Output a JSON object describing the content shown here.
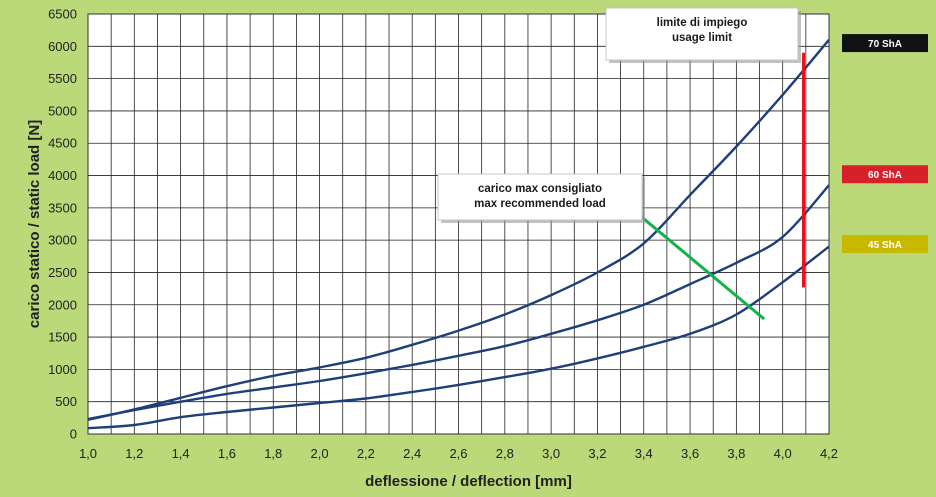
{
  "chart_data": {
    "type": "line",
    "xlabel": "deflessione / deflection [mm]",
    "ylabel": "carico statico / static load [N]",
    "xlim": [
      1.0,
      4.2
    ],
    "ylim": [
      0,
      6500
    ],
    "x_ticks": [
      "1,0",
      "1,2",
      "1,4",
      "1,6",
      "1,8",
      "2,0",
      "2,2",
      "2,4",
      "2,6",
      "2,8",
      "3,0",
      "3,2",
      "3,4",
      "3,6",
      "3,8",
      "4,0",
      "4,2"
    ],
    "y_ticks": [
      "0",
      "500",
      "1000",
      "1500",
      "2000",
      "2500",
      "3000",
      "3500",
      "4000",
      "4500",
      "5000",
      "5500",
      "6000",
      "6500"
    ],
    "grid": true,
    "series": [
      {
        "name": "70 ShA",
        "color": "#1f3f7a",
        "x": [
          1.0,
          1.2,
          1.4,
          1.6,
          1.8,
          2.0,
          2.2,
          2.4,
          2.6,
          2.8,
          3.0,
          3.2,
          3.4,
          3.6,
          3.8,
          4.0,
          4.2
        ],
        "y": [
          220,
          380,
          560,
          740,
          900,
          1030,
          1180,
          1380,
          1600,
          1850,
          2150,
          2500,
          2950,
          3700,
          4450,
          5250,
          6100
        ]
      },
      {
        "name": "60 ShA",
        "color": "#1f3f7a",
        "x": [
          1.0,
          1.2,
          1.4,
          1.6,
          1.8,
          2.0,
          2.2,
          2.4,
          2.6,
          2.8,
          3.0,
          3.2,
          3.4,
          3.6,
          3.8,
          4.0,
          4.2
        ],
        "y": [
          230,
          370,
          500,
          620,
          720,
          820,
          940,
          1070,
          1210,
          1360,
          1550,
          1760,
          2000,
          2320,
          2650,
          3050,
          3850
        ]
      },
      {
        "name": "45 ShA",
        "color": "#1f3f7a",
        "x": [
          1.0,
          1.2,
          1.4,
          1.6,
          1.8,
          2.0,
          2.2,
          2.4,
          2.6,
          2.8,
          3.0,
          3.2,
          3.4,
          3.6,
          3.8,
          4.0,
          4.2
        ],
        "y": [
          90,
          140,
          260,
          340,
          410,
          480,
          550,
          650,
          760,
          880,
          1010,
          1170,
          1350,
          1550,
          1850,
          2350,
          2900
        ]
      }
    ],
    "annotations": [
      {
        "name": "usage-limit",
        "lines": [
          "limite di impiego",
          "usage limit"
        ],
        "color": "#e8101c",
        "line": {
          "x": [
            4.09,
            4.09
          ],
          "y": [
            5900,
            2270
          ]
        }
      },
      {
        "name": "max-recommended-load",
        "lines": [
          "carico max consigliato",
          "max recommended load"
        ],
        "color": "#13b34a",
        "line": {
          "x": [
            3.36,
            3.92
          ],
          "y": [
            3450,
            1780
          ]
        }
      }
    ],
    "legend": [
      {
        "label": "70 ShA",
        "color": "#111111",
        "value": 6050
      },
      {
        "label": "60 ShA",
        "color": "#d6202a",
        "value": 4020
      },
      {
        "label": "45 ShA",
        "color": "#c9b800",
        "value": 2940
      }
    ],
    "legend_position": "right"
  }
}
